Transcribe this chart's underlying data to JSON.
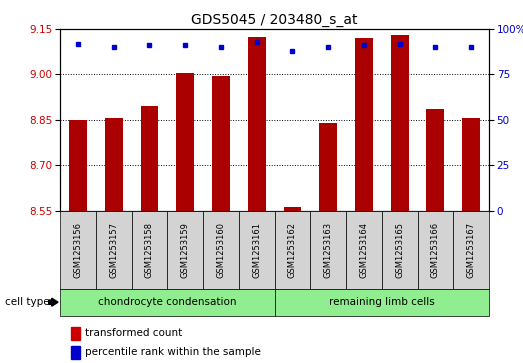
{
  "title": "GDS5045 / 203480_s_at",
  "samples": [
    "GSM1253156",
    "GSM1253157",
    "GSM1253158",
    "GSM1253159",
    "GSM1253160",
    "GSM1253161",
    "GSM1253162",
    "GSM1253163",
    "GSM1253164",
    "GSM1253165",
    "GSM1253166",
    "GSM1253167"
  ],
  "transformed_count": [
    8.848,
    8.855,
    8.895,
    9.005,
    8.995,
    9.125,
    8.562,
    8.838,
    9.12,
    9.13,
    8.885,
    8.855
  ],
  "percentile_rank": [
    92,
    90,
    91,
    91,
    90,
    93,
    88,
    90,
    91,
    92,
    90,
    90
  ],
  "ylim_left": [
    8.55,
    9.15
  ],
  "ylim_right": [
    0,
    100
  ],
  "yticks_left": [
    8.55,
    8.7,
    8.85,
    9.0,
    9.15
  ],
  "yticks_right": [
    0,
    25,
    50,
    75,
    100
  ],
  "ytick_labels_right": [
    "0",
    "25",
    "50",
    "75",
    "100%"
  ],
  "bar_color": "#aa0000",
  "dot_color": "#0000cc",
  "bar_bottom": 8.55,
  "grid_lines": [
    9.0,
    8.85,
    8.7
  ],
  "group1_indices": [
    0,
    1,
    2,
    3,
    4,
    5
  ],
  "group2_indices": [
    6,
    7,
    8,
    9,
    10,
    11
  ],
  "group1_label": "chondrocyte condensation",
  "group2_label": "remaining limb cells",
  "cell_type_label": "cell type",
  "legend1_label": "transformed count",
  "legend2_label": "percentile rank within the sample",
  "tick_label_color_left": "#cc0000",
  "tick_label_color_right": "#0000cc",
  "bar_color_legend": "#cc0000",
  "dot_color_legend": "#0000cc",
  "background_color": "#ffffff",
  "sample_bg_color": "#d3d3d3",
  "group_bg_color": "#90ee90",
  "figsize": [
    5.23,
    3.63
  ],
  "dpi": 100
}
